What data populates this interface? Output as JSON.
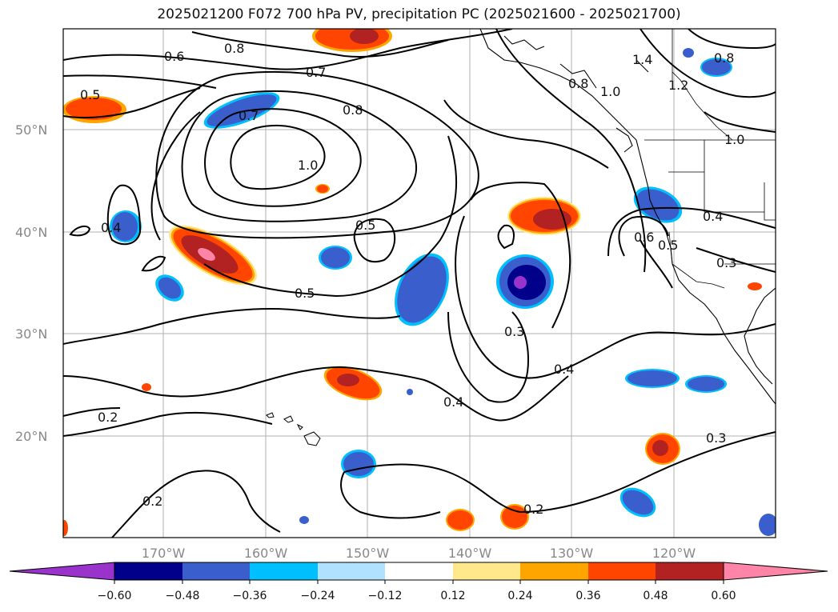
{
  "title": "2025021200 F072 700 hPa PV, precipitation PC (2025021600 - 2025021700)",
  "map": {
    "lat_labels": [
      "50°N",
      "40°N",
      "30°N",
      "20°N"
    ],
    "lon_labels": [
      "170°W",
      "160°W",
      "150°W",
      "140°W",
      "130°W",
      "120°W"
    ],
    "contour_labels": [
      "0.6",
      "0.8",
      "0.7",
      "0.5",
      "0.7",
      "0.8",
      "1.0",
      "0.4",
      "0.5",
      "0.5",
      "0.8",
      "1.0",
      "1.4",
      "1.2",
      "0.8",
      "1.0",
      "0.4",
      "0.6",
      "0.5",
      "0.3",
      "0.3",
      "0.4",
      "0.4",
      "0.2",
      "0.2",
      "0.2",
      "0.3"
    ]
  },
  "colorbar": {
    "ticks": [
      "−0.60",
      "−0.48",
      "−0.36",
      "−0.24",
      "−0.12",
      "0.12",
      "0.24",
      "0.36",
      "0.48",
      "0.60"
    ],
    "colors": [
      "#9933cc",
      "#00008b",
      "#3a5fcd",
      "#00bfff",
      "#b0e2ff",
      "#ffffff",
      "#ffe78c",
      "#ffa500",
      "#ff4500",
      "#b22222",
      "#ff85a8"
    ]
  },
  "palette": {
    "neg_light": "#00bfff",
    "neg_mid": "#3a5fcd",
    "neg_dark": "#00008b",
    "neg_purple": "#9933cc",
    "pos_yellow": "#ffe78c",
    "pos_orange": "#ffa500",
    "pos_red": "#ff4500",
    "pos_darkred": "#b22222",
    "pos_pink": "#ff85a8"
  }
}
